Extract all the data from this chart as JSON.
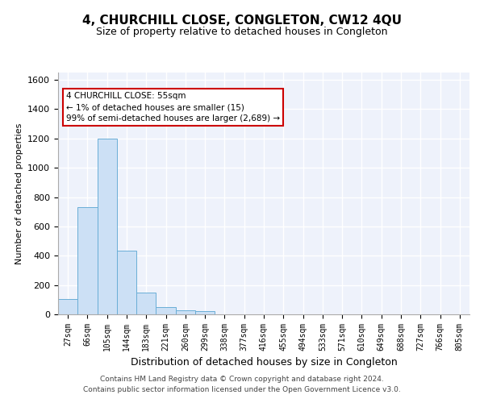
{
  "title": "4, CHURCHILL CLOSE, CONGLETON, CW12 4QU",
  "subtitle": "Size of property relative to detached houses in Congleton",
  "xlabel": "Distribution of detached houses by size in Congleton",
  "ylabel": "Number of detached properties",
  "bar_color": "#cce0f5",
  "bar_edge_color": "#6aaed6",
  "background_color": "#eef2fb",
  "grid_color": "#ffffff",
  "categories": [
    "27sqm",
    "66sqm",
    "105sqm",
    "144sqm",
    "183sqm",
    "221sqm",
    "260sqm",
    "299sqm",
    "338sqm",
    "377sqm",
    "416sqm",
    "455sqm",
    "494sqm",
    "533sqm",
    "571sqm",
    "610sqm",
    "649sqm",
    "688sqm",
    "727sqm",
    "766sqm",
    "805sqm"
  ],
  "values": [
    105,
    730,
    1200,
    435,
    150,
    50,
    30,
    20,
    0,
    0,
    0,
    0,
    0,
    0,
    0,
    0,
    0,
    0,
    0,
    0,
    0
  ],
  "ylim": [
    0,
    1650
  ],
  "yticks": [
    0,
    200,
    400,
    600,
    800,
    1000,
    1200,
    1400,
    1600
  ],
  "annotation_line1": "4 CHURCHILL CLOSE: 55sqm",
  "annotation_line2": "← 1% of detached houses are smaller (15)",
  "annotation_line3": "99% of semi-detached houses are larger (2,689) →",
  "annotation_box_color": "#ffffff",
  "annotation_border_color": "#cc0000",
  "footer_line1": "Contains HM Land Registry data © Crown copyright and database right 2024.",
  "footer_line2": "Contains public sector information licensed under the Open Government Licence v3.0."
}
